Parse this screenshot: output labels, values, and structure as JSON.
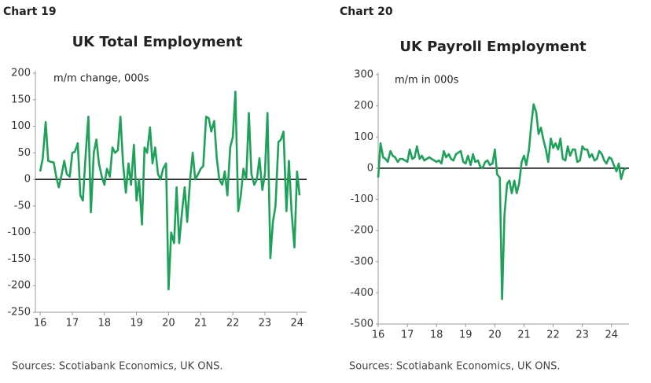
{
  "chart_data": [
    {
      "type": "line",
      "label": "Chart 19",
      "title": "UK Total Employment",
      "annotation": "m/m change, 000s",
      "source": "Sources: Scotiabank Economics, UK ONS.",
      "color": "#1ea25a",
      "xlim": [
        2015.85,
        2024.3
      ],
      "xticks": [
        {
          "value": 2016,
          "label": "16"
        },
        {
          "value": 2017,
          "label": "17"
        },
        {
          "value": 2018,
          "label": "18"
        },
        {
          "value": 2019,
          "label": "19"
        },
        {
          "value": 2020,
          "label": "20"
        },
        {
          "value": 2021,
          "label": "21"
        },
        {
          "value": 2022,
          "label": "22"
        },
        {
          "value": 2023,
          "label": "23"
        },
        {
          "value": 2024,
          "label": "24"
        }
      ],
      "ylim": [
        -250,
        200
      ],
      "yticks": [
        200,
        150,
        100,
        50,
        0,
        -50,
        -100,
        -150,
        -200,
        -250
      ],
      "x": [
        2016,
        2016.08,
        2016.17,
        2016.25,
        2016.33,
        2016.42,
        2016.5,
        2016.58,
        2016.67,
        2016.75,
        2016.83,
        2016.92,
        2017,
        2017.08,
        2017.17,
        2017.25,
        2017.33,
        2017.42,
        2017.5,
        2017.58,
        2017.67,
        2017.75,
        2017.83,
        2017.92,
        2018,
        2018.08,
        2018.17,
        2018.25,
        2018.33,
        2018.42,
        2018.5,
        2018.58,
        2018.67,
        2018.75,
        2018.83,
        2018.92,
        2019,
        2019.08,
        2019.17,
        2019.25,
        2019.33,
        2019.42,
        2019.5,
        2019.58,
        2019.67,
        2019.75,
        2019.83,
        2019.92,
        2020,
        2020.08,
        2020.17,
        2020.25,
        2020.33,
        2020.42,
        2020.5,
        2020.58,
        2020.67,
        2020.75,
        2020.83,
        2020.92,
        2021,
        2021.08,
        2021.17,
        2021.25,
        2021.33,
        2021.42,
        2021.5,
        2021.58,
        2021.67,
        2021.75,
        2021.83,
        2021.92,
        2022,
        2022.08,
        2022.17,
        2022.25,
        2022.33,
        2022.42,
        2022.5,
        2022.58,
        2022.67,
        2022.75,
        2022.83,
        2022.92,
        2023,
        2023.08,
        2023.17,
        2023.25,
        2023.33,
        2023.42,
        2023.5,
        2023.58,
        2023.67,
        2023.75,
        2023.83,
        2023.92,
        2024,
        2024.08
      ],
      "values": [
        15,
        40,
        108,
        35,
        33,
        32,
        5,
        -15,
        10,
        35,
        10,
        5,
        50,
        52,
        68,
        -30,
        -40,
        50,
        118,
        -62,
        50,
        75,
        30,
        5,
        -10,
        20,
        5,
        60,
        50,
        55,
        118,
        30,
        -25,
        30,
        -10,
        65,
        -40,
        0,
        -85,
        60,
        50,
        98,
        30,
        60,
        10,
        0,
        20,
        30,
        -207,
        -100,
        -120,
        -15,
        -120,
        -60,
        -15,
        -80,
        0,
        50,
        0,
        10,
        20,
        25,
        118,
        115,
        90,
        110,
        40,
        0,
        -10,
        15,
        -30,
        60,
        80,
        165,
        -60,
        -30,
        20,
        0,
        125,
        10,
        -10,
        0,
        40,
        -20,
        10,
        125,
        -148,
        -80,
        -50,
        70,
        75,
        90,
        -60,
        35,
        -60,
        -128,
        15,
        -30
      ]
    },
    {
      "type": "line",
      "label": "Chart 20",
      "title": "UK Payroll Employment",
      "annotation": "m/m in 000s",
      "source": "Sources: Scotiabank Economics, UK ONS.",
      "color": "#1ea25a",
      "xlim": [
        2016,
        2024.6
      ],
      "xticks": [
        {
          "value": 2016,
          "label": "16"
        },
        {
          "value": 2017,
          "label": "17"
        },
        {
          "value": 2018,
          "label": "18"
        },
        {
          "value": 2019,
          "label": "19"
        },
        {
          "value": 2020,
          "label": "20"
        },
        {
          "value": 2021,
          "label": "21"
        },
        {
          "value": 2022,
          "label": "22"
        },
        {
          "value": 2023,
          "label": "23"
        },
        {
          "value": 2024,
          "label": "24"
        }
      ],
      "ylim": [
        -500,
        300
      ],
      "yticks": [
        300,
        200,
        100,
        0,
        -100,
        -200,
        -300,
        -400,
        -500
      ],
      "x": [
        2016,
        2016.08,
        2016.17,
        2016.25,
        2016.33,
        2016.42,
        2016.5,
        2016.58,
        2016.67,
        2016.75,
        2016.83,
        2016.92,
        2017,
        2017.08,
        2017.17,
        2017.25,
        2017.33,
        2017.42,
        2017.5,
        2017.58,
        2017.67,
        2017.75,
        2017.83,
        2017.92,
        2018,
        2018.08,
        2018.17,
        2018.25,
        2018.33,
        2018.42,
        2018.5,
        2018.58,
        2018.67,
        2018.75,
        2018.83,
        2018.92,
        2019,
        2019.08,
        2019.17,
        2019.25,
        2019.33,
        2019.42,
        2019.5,
        2019.58,
        2019.67,
        2019.75,
        2019.83,
        2019.92,
        2020,
        2020.08,
        2020.17,
        2020.25,
        2020.33,
        2020.42,
        2020.5,
        2020.58,
        2020.67,
        2020.75,
        2020.83,
        2020.92,
        2021,
        2021.08,
        2021.17,
        2021.25,
        2021.33,
        2021.42,
        2021.5,
        2021.58,
        2021.67,
        2021.75,
        2021.83,
        2021.92,
        2022,
        2022.08,
        2022.17,
        2022.25,
        2022.33,
        2022.42,
        2022.5,
        2022.58,
        2022.67,
        2022.75,
        2022.83,
        2022.92,
        2023,
        2023.08,
        2023.17,
        2023.25,
        2023.33,
        2023.42,
        2023.5,
        2023.58,
        2023.67,
        2023.75,
        2023.83,
        2023.92,
        2024,
        2024.08,
        2024.17,
        2024.25,
        2024.33,
        2024.42,
        2024.5
      ],
      "values": [
        -30,
        80,
        35,
        30,
        20,
        55,
        40,
        35,
        20,
        30,
        30,
        25,
        20,
        60,
        30,
        35,
        70,
        30,
        40,
        25,
        30,
        35,
        30,
        25,
        20,
        25,
        15,
        55,
        35,
        45,
        30,
        25,
        45,
        50,
        55,
        20,
        15,
        40,
        10,
        45,
        20,
        25,
        5,
        0,
        20,
        25,
        10,
        15,
        60,
        -20,
        -30,
        -420,
        -150,
        -50,
        -40,
        -80,
        -40,
        -80,
        -50,
        20,
        40,
        10,
        60,
        140,
        205,
        180,
        110,
        130,
        90,
        60,
        20,
        95,
        65,
        80,
        60,
        95,
        30,
        25,
        70,
        40,
        60,
        60,
        20,
        25,
        70,
        60,
        60,
        35,
        45,
        25,
        30,
        55,
        45,
        25,
        15,
        35,
        30,
        10,
        -10,
        15,
        -35,
        -5,
        0
      ]
    }
  ]
}
